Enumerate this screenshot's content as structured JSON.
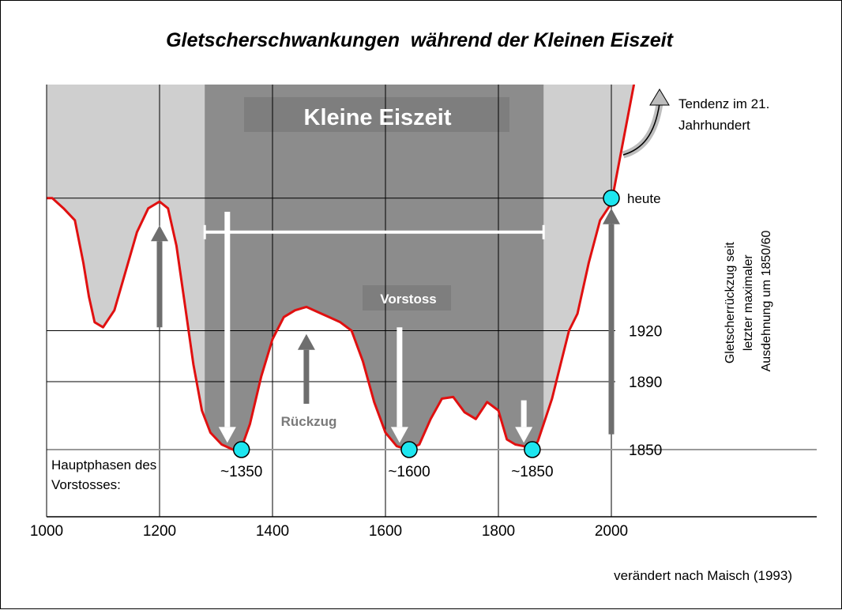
{
  "title": "Gletscherschwankungen  während der Kleinen Eiszeit",
  "source": "verändert nach Maisch (1993)",
  "colors": {
    "curve": "#e01010",
    "light_fill": "#cfcfcf",
    "dark_fill": "#8c8c8c",
    "marker": "#1ee6f0",
    "arrow_dark": "#6e6e6e",
    "arrow_white": "#ffffff"
  },
  "chart_data": {
    "type": "line",
    "x_axis": {
      "range": [
        1000,
        2050
      ],
      "ticks": [
        "1000",
        "1200",
        "1400",
        "1600",
        "1800",
        "2000"
      ]
    },
    "y_axis": {
      "reference_levels": [
        {
          "label": "1920",
          "value": 1920
        },
        {
          "label": "1890",
          "value": 1890
        },
        {
          "label": "1850",
          "value": 1850
        }
      ],
      "ylabel": "Gletscherrückzug seit letzter maximaler Ausdehnung um 1850/60"
    },
    "period": {
      "label": "Kleine Eiszeit",
      "start": 1280,
      "end": 1880
    },
    "series": [
      {
        "points": [
          [
            1000,
            1998
          ],
          [
            1010,
            1998
          ],
          [
            1030,
            1992
          ],
          [
            1050,
            1985
          ],
          [
            1065,
            1960
          ],
          [
            1075,
            1940
          ],
          [
            1085,
            1925
          ],
          [
            1100,
            1922
          ],
          [
            1120,
            1932
          ],
          [
            1140,
            1955
          ],
          [
            1160,
            1978
          ],
          [
            1180,
            1992
          ],
          [
            1200,
            1996
          ],
          [
            1215,
            1992
          ],
          [
            1230,
            1970
          ],
          [
            1245,
            1935
          ],
          [
            1260,
            1900
          ],
          [
            1275,
            1873
          ],
          [
            1290,
            1860
          ],
          [
            1310,
            1853
          ],
          [
            1330,
            1850
          ],
          [
            1345,
            1851
          ],
          [
            1360,
            1865
          ],
          [
            1380,
            1893
          ],
          [
            1400,
            1915
          ],
          [
            1420,
            1928
          ],
          [
            1440,
            1932
          ],
          [
            1460,
            1934
          ],
          [
            1480,
            1931
          ],
          [
            1500,
            1928
          ],
          [
            1520,
            1925
          ],
          [
            1540,
            1920
          ],
          [
            1560,
            1902
          ],
          [
            1580,
            1878
          ],
          [
            1600,
            1860
          ],
          [
            1620,
            1852
          ],
          [
            1640,
            1850
          ],
          [
            1660,
            1853
          ],
          [
            1680,
            1868
          ],
          [
            1700,
            1880
          ],
          [
            1720,
            1881
          ],
          [
            1740,
            1872
          ],
          [
            1760,
            1868
          ],
          [
            1780,
            1878
          ],
          [
            1800,
            1873
          ],
          [
            1815,
            1856
          ],
          [
            1830,
            1853
          ],
          [
            1845,
            1852
          ],
          [
            1860,
            1850
          ],
          [
            1870,
            1855
          ],
          [
            1880,
            1865
          ],
          [
            1895,
            1880
          ],
          [
            1910,
            1900
          ],
          [
            1925,
            1920
          ],
          [
            1940,
            1930
          ],
          [
            1960,
            1960
          ],
          [
            1980,
            1985
          ],
          [
            2000,
            1995
          ],
          [
            2020,
            2030
          ],
          [
            2040,
            2065
          ]
        ]
      }
    ],
    "markers": [
      {
        "label": "~1350",
        "x": 1345,
        "y": 1850
      },
      {
        "label": "~1600",
        "x": 1642,
        "y": 1850
      },
      {
        "label": "~1850",
        "x": 1860,
        "y": 1850
      },
      {
        "label": "heute",
        "x": 2000,
        "y": 1998
      }
    ],
    "annotations": {
      "vorstoss": "Vorstoss",
      "rueckzug": "Rückzug",
      "hauptphasen": [
        "Hauptphasen des",
        "Vorstosses:"
      ],
      "tendenz": [
        "Tendenz im 21.",
        "Jahrhundert"
      ]
    },
    "arrows": [
      {
        "kind": "retreat",
        "x": 1200,
        "from": 1922,
        "to": 1982
      },
      {
        "kind": "advance",
        "x": 1320,
        "from": 1990,
        "to": 1854
      },
      {
        "kind": "retreat",
        "x": 1460,
        "from": 1877,
        "to": 1918
      },
      {
        "kind": "advance",
        "x": 1625,
        "from": 1922,
        "to": 1854
      },
      {
        "kind": "advance",
        "x": 1845,
        "from": 1879,
        "to": 1854
      },
      {
        "kind": "retreat",
        "x": 2000,
        "from": 1859,
        "to": 1992
      }
    ]
  }
}
